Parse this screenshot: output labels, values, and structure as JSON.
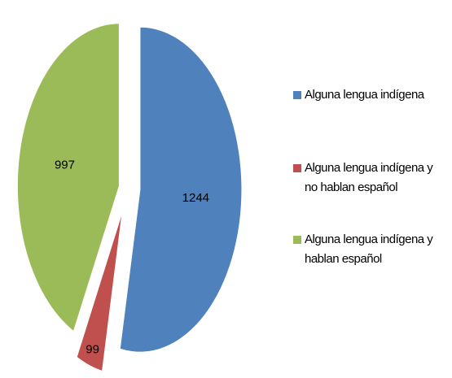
{
  "chart_data": {
    "type": "pie",
    "categories": [
      "Alguna lengua indígena",
      "Alguna lengua indígena y no hablan español",
      "Alguna lengua indígena y hablan español"
    ],
    "values": [
      1244,
      99,
      997
    ],
    "colors": [
      "#4f81bd",
      "#c0504d",
      "#9bbb59"
    ],
    "legend": "right"
  }
}
